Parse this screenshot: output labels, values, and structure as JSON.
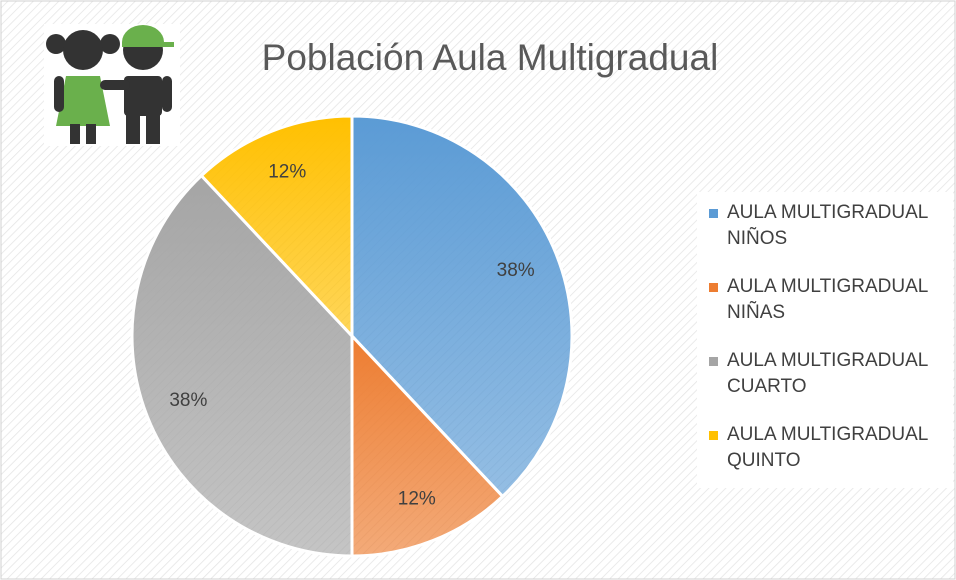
{
  "chart_data": {
    "type": "pie",
    "title": "Población Aula Multigradual",
    "categories": [
      "AULA MULTIGRADUAL NIÑOS",
      "AULA MULTIGRADUAL NIÑAS",
      "AULA MULTIGRADUAL CUARTO",
      "AULA MULTIGRADUAL QUINTO"
    ],
    "values": [
      38,
      12,
      38,
      12
    ],
    "value_labels": [
      "38%",
      "12%",
      "38%",
      "12%"
    ],
    "colors": [
      "#5b9bd5",
      "#ed7d31",
      "#a5a5a5",
      "#ffc000"
    ],
    "legend": "right"
  }
}
